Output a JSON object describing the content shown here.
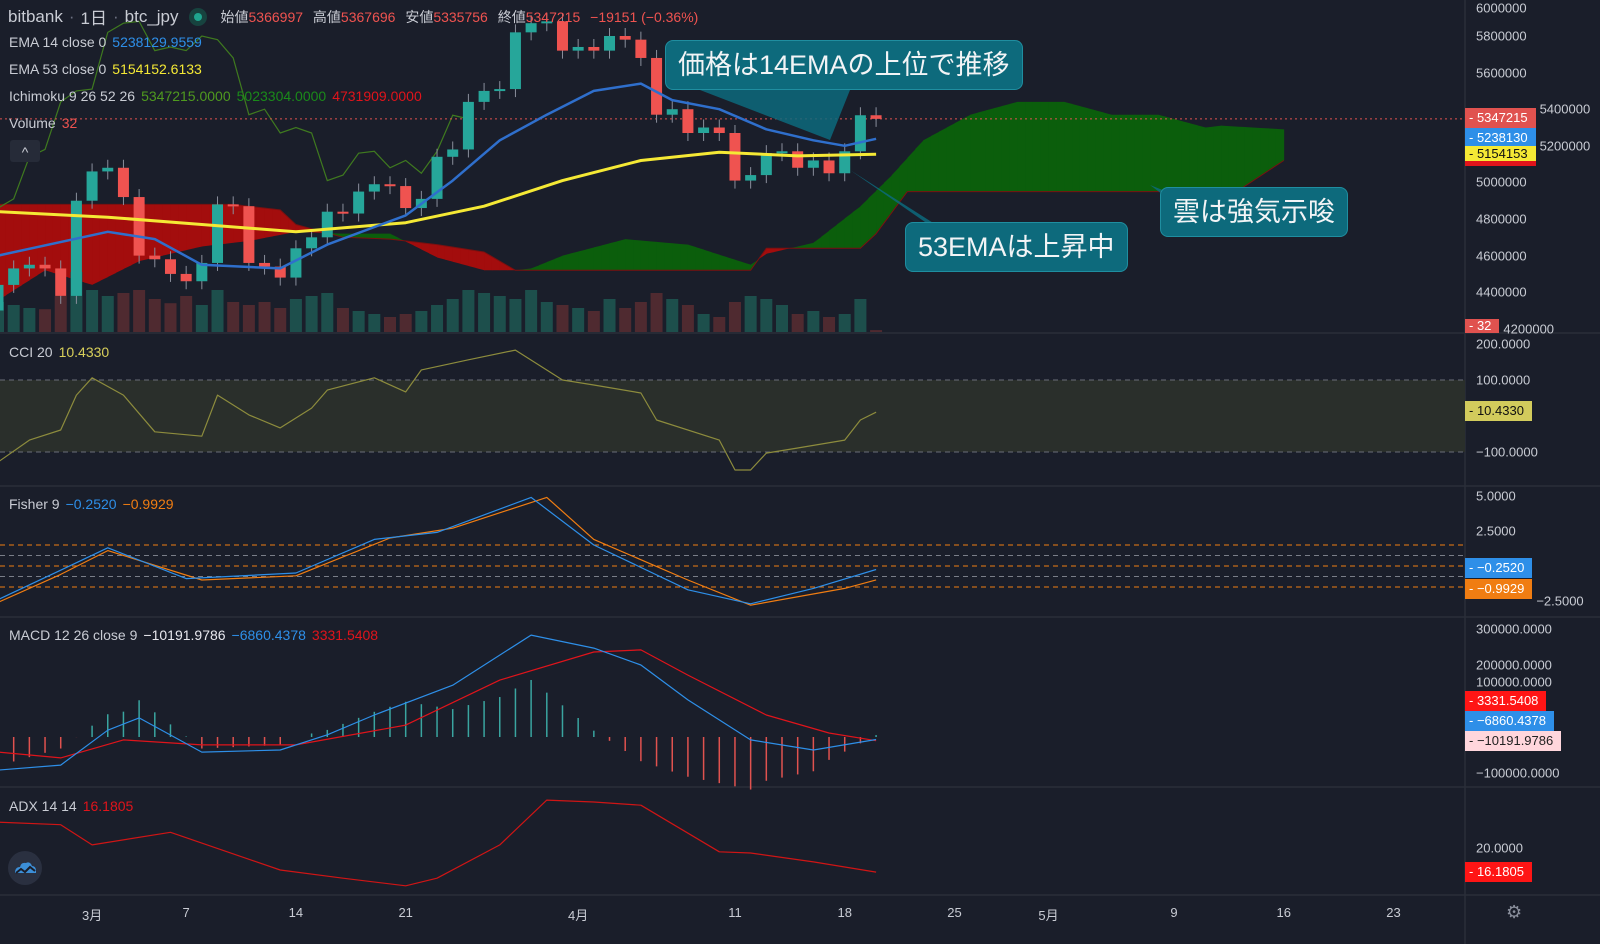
{
  "header": {
    "exchange": "bitbank",
    "interval": "1日",
    "symbol": "btc_jpy",
    "ohlc": {
      "open_label": "始値",
      "open": "5366997",
      "high_label": "高値",
      "high": "5367696",
      "low_label": "安値",
      "low": "5335756",
      "close_label": "終値",
      "close": "5347215",
      "change": "−19151 (−0.36%)"
    },
    "collapse": "^"
  },
  "legends": {
    "ema14": {
      "label": "EMA 14 close 0",
      "value": "5238129.9559"
    },
    "ema53": {
      "label": "EMA 53 close 0",
      "value": "5154152.6133"
    },
    "ichimoku": {
      "label": "Ichimoku 9 26 52 26",
      "v1": "5347215.0000",
      "v2": "5023304.0000",
      "v3": "4731909.0000"
    },
    "volume": {
      "label": "Volume",
      "value": "32"
    },
    "cci": {
      "label": "CCI 20",
      "value": "10.4330"
    },
    "fisher": {
      "label": "Fisher 9",
      "v1": "−0.2520",
      "v2": "−0.9929"
    },
    "macd": {
      "label": "MACD 12 26 close 9",
      "v1": "−10191.9786",
      "v2": "−6860.4378",
      "v3": "3331.5408"
    },
    "adx": {
      "label": "ADX 14 14",
      "value": "16.1805"
    }
  },
  "annotations": [
    {
      "text": "価格は14EMAの上位で推移"
    },
    {
      "text": "雲は強気示唆"
    },
    {
      "text": "53EMAは上昇中"
    }
  ],
  "axes": {
    "price_ticks": [
      "6000000",
      "5800000",
      "5600000",
      "5400000",
      "5200000",
      "5000000",
      "4800000",
      "4600000",
      "4400000",
      "4200000"
    ],
    "cci_ticks": [
      "200.0000",
      "100.0000",
      "−100.0000"
    ],
    "fisher_ticks": [
      "5.0000",
      "2.5000",
      "−2.5000"
    ],
    "macd_ticks": [
      "300000.0000",
      "200000.0000",
      "100000.0000",
      "−100000.0000"
    ],
    "adx_ticks": [
      "20.0000"
    ],
    "time_ticks": [
      {
        "label": "3月",
        "date": "3/1"
      },
      {
        "label": "7",
        "date": "3/7"
      },
      {
        "label": "14",
        "date": "3/14"
      },
      {
        "label": "21",
        "date": "3/21"
      },
      {
        "label": "4月",
        "date": "4/1"
      },
      {
        "label": "11",
        "date": "4/11"
      },
      {
        "label": "18",
        "date": "4/18"
      },
      {
        "label": "25",
        "date": "4/25"
      },
      {
        "label": "5月",
        "date": "5/1"
      },
      {
        "label": "9",
        "date": "5/9"
      },
      {
        "label": "16",
        "date": "5/16"
      },
      {
        "label": "23",
        "date": "5/23"
      }
    ]
  },
  "price_markers": {
    "last": "5347215",
    "ema14": "5238130",
    "ema53": "5154153",
    "volume": "32",
    "cci": "10.4330",
    "fisher1": "−0.2520",
    "fisher2": "−0.9929",
    "macd3": "3331.5408",
    "macd2": "−6860.4378",
    "macd1": "−10191.9786",
    "adx": "16.1805"
  },
  "colors": {
    "up": "#26a69a",
    "down": "#ef5350",
    "ema14": "#2f6fcc",
    "ema53": "#f5e935",
    "cloud_bull": "#0b5e0c",
    "cloud_bear": "#a30d0d",
    "chikou": "#3f7a1f",
    "cci": "#8d8c3d",
    "fisher": "#2e8fe8",
    "fisher_trigger": "#f07d12",
    "macd": "#2e8fe8",
    "signal": "#e0141b",
    "adx": "#d01515",
    "callout": "#0d6a7c"
  },
  "chart_data": {
    "type": "candlestick",
    "dates_start": "2/23",
    "candles": [
      [
        4300000,
        4440000
      ],
      [
        4440000,
        4530000
      ],
      [
        4530000,
        4550000
      ],
      [
        4550000,
        4530000
      ],
      [
        4530000,
        4380000
      ],
      [
        4380000,
        4900000
      ],
      [
        4900000,
        5060000
      ],
      [
        5060000,
        5080000
      ],
      [
        5080000,
        4920000
      ],
      [
        4920000,
        4600000
      ],
      [
        4600000,
        4580000
      ],
      [
        4580000,
        4500000
      ],
      [
        4500000,
        4460000
      ],
      [
        4460000,
        4560000
      ],
      [
        4560000,
        4880000
      ],
      [
        4880000,
        4870000
      ],
      [
        4870000,
        4560000
      ],
      [
        4560000,
        4540000
      ],
      [
        4540000,
        4480000
      ],
      [
        4480000,
        4640000
      ],
      [
        4640000,
        4700000
      ],
      [
        4700000,
        4840000
      ],
      [
        4840000,
        4830000
      ],
      [
        4830000,
        4950000
      ],
      [
        4950000,
        4990000
      ],
      [
        4990000,
        4980000
      ],
      [
        4980000,
        4860000
      ],
      [
        4860000,
        4910000
      ],
      [
        4910000,
        5140000
      ],
      [
        5140000,
        5180000
      ],
      [
        5180000,
        5440000
      ],
      [
        5440000,
        5500000
      ],
      [
        5500000,
        5510000
      ],
      [
        5510000,
        5820000
      ],
      [
        5820000,
        5870000
      ],
      [
        5870000,
        5880000
      ],
      [
        5880000,
        5720000
      ],
      [
        5720000,
        5740000
      ],
      [
        5740000,
        5720000
      ],
      [
        5720000,
        5800000
      ],
      [
        5800000,
        5780000
      ],
      [
        5780000,
        5680000
      ],
      [
        5680000,
        5370000
      ],
      [
        5370000,
        5400000
      ],
      [
        5400000,
        5270000
      ],
      [
        5270000,
        5300000
      ],
      [
        5300000,
        5270000
      ],
      [
        5270000,
        5010000
      ],
      [
        5010000,
        5040000
      ],
      [
        5040000,
        5160000
      ],
      [
        5160000,
        5170000
      ],
      [
        5170000,
        5080000
      ],
      [
        5080000,
        5120000
      ],
      [
        5120000,
        5050000
      ],
      [
        5050000,
        5170000
      ],
      [
        5170000,
        5367000
      ],
      [
        5366997,
        5347215
      ]
    ],
    "volume": [
      500,
      450,
      400,
      380,
      600,
      1000,
      700,
      600,
      650,
      700,
      550,
      480,
      600,
      450,
      700,
      500,
      450,
      500,
      400,
      550,
      600,
      650,
      400,
      350,
      300,
      250,
      300,
      350,
      450,
      550,
      700,
      650,
      600,
      550,
      700,
      500,
      450,
      400,
      350,
      550,
      400,
      500,
      650,
      550,
      450,
      300,
      250,
      500,
      600,
      550,
      450,
      300,
      350,
      250,
      300,
      550,
      32
    ],
    "ema14": [
      [
        "2/23",
        4600000
      ],
      [
        "3/2",
        4730000
      ],
      [
        "3/5",
        4690000
      ],
      [
        "3/8",
        4550000
      ],
      [
        "3/13",
        4530000
      ],
      [
        "3/16",
        4660000
      ],
      [
        "3/21",
        4820000
      ],
      [
        "3/24",
        5010000
      ],
      [
        "3/27",
        5230000
      ],
      [
        "3/30",
        5370000
      ],
      [
        "4/2",
        5500000
      ],
      [
        "4/5",
        5540000
      ],
      [
        "4/7",
        5450000
      ],
      [
        "4/10",
        5400000
      ],
      [
        "4/13",
        5290000
      ],
      [
        "4/16",
        5230000
      ],
      [
        "4/18",
        5200000
      ],
      [
        "4/20",
        5238130
      ]
    ],
    "ema53": [
      [
        "2/23",
        4840000
      ],
      [
        "3/2",
        4810000
      ],
      [
        "3/8",
        4770000
      ],
      [
        "3/14",
        4730000
      ],
      [
        "3/21",
        4780000
      ],
      [
        "3/26",
        4870000
      ],
      [
        "3/31",
        5010000
      ],
      [
        "4/5",
        5120000
      ],
      [
        "4/10",
        5165000
      ],
      [
        "4/15",
        5145000
      ],
      [
        "4/20",
        5154153
      ]
    ],
    "ichimoku_span_a": [
      [
        "2/23",
        4356000
      ],
      [
        "2/26",
        4520000
      ],
      [
        "3/1",
        4440000
      ],
      [
        "3/4",
        4570000
      ],
      [
        "3/8",
        4650000
      ],
      [
        "3/11",
        4680000
      ],
      [
        "3/14",
        4730000
      ],
      [
        "3/17",
        4720000
      ],
      [
        "3/20",
        4720000
      ],
      [
        "3/23",
        4590000
      ],
      [
        "3/26",
        4520000
      ],
      [
        "3/28",
        4520000
      ],
      [
        "3/29",
        4530000
      ],
      [
        "3/31",
        4600000
      ],
      [
        "4/4",
        4690000
      ],
      [
        "4/8",
        4660000
      ],
      [
        "4/12",
        4550000
      ],
      [
        "4/13",
        4610000
      ],
      [
        "4/16",
        4670000
      ],
      [
        "4/19",
        4870000
      ],
      [
        "4/21",
        5040000
      ],
      [
        "4/23",
        5230000
      ],
      [
        "4/26",
        5370000
      ],
      [
        "4/29",
        5440000
      ],
      [
        "5/2",
        5440000
      ],
      [
        "5/5",
        5370000
      ],
      [
        "5/8",
        5370000
      ],
      [
        "5/11",
        5300000
      ],
      [
        "5/12",
        5310000
      ],
      [
        "5/16",
        5290000
      ]
    ],
    "ichimoku_span_b": [
      [
        "2/23",
        4880000
      ],
      [
        "3/10",
        4880000
      ],
      [
        "3/13",
        4850000
      ],
      [
        "3/14",
        4770000
      ],
      [
        "3/17",
        4700000
      ],
      [
        "3/20",
        4690000
      ],
      [
        "3/23",
        4660000
      ],
      [
        "3/26",
        4620000
      ],
      [
        "3/28",
        4520000
      ],
      [
        "4/12",
        4520000
      ],
      [
        "4/13",
        4640000
      ],
      [
        "4/19",
        4640000
      ],
      [
        "4/20",
        4720000
      ],
      [
        "4/22",
        4950000
      ],
      [
        "5/13",
        4950000
      ],
      [
        "5/16",
        5120000
      ]
    ],
    "cci": [
      [
        "2/23",
        -128
      ],
      [
        "2/25",
        -67
      ],
      [
        "2/27",
        -39
      ],
      [
        "2/28",
        58
      ],
      [
        "3/1",
        106
      ],
      [
        "3/3",
        58
      ],
      [
        "3/5",
        -44
      ],
      [
        "3/8",
        -56
      ],
      [
        "3/9",
        58
      ],
      [
        "3/11",
        3
      ],
      [
        "3/13",
        -33
      ],
      [
        "3/15",
        22
      ],
      [
        "3/16",
        72
      ],
      [
        "3/19",
        106
      ],
      [
        "3/21",
        67
      ],
      [
        "3/22",
        128
      ],
      [
        "3/25",
        156
      ],
      [
        "3/28",
        183
      ],
      [
        "3/31",
        100
      ],
      [
        "4/2",
        86
      ],
      [
        "4/5",
        64
      ],
      [
        "4/6",
        -11
      ],
      [
        "4/10",
        -67
      ],
      [
        "4/11",
        -150
      ],
      [
        "4/12",
        -150
      ],
      [
        "4/13",
        -103
      ],
      [
        "4/15",
        -89
      ],
      [
        "4/18",
        -67
      ],
      [
        "4/19",
        -11
      ],
      [
        "4/20",
        10.433
      ]
    ],
    "cci_levels": [
      100,
      -100
    ],
    "fisher": [
      [
        "2/23",
        -2.4
      ],
      [
        "2/27",
        -0.3
      ],
      [
        "3/2",
        1.3
      ],
      [
        "3/7",
        -0.9
      ],
      [
        "3/14",
        -0.5
      ],
      [
        "3/19",
        1.9
      ],
      [
        "3/23",
        2.4
      ],
      [
        "3/29",
        4.9
      ],
      [
        "4/2",
        1.5
      ],
      [
        "4/8",
        -1.7
      ],
      [
        "4/12",
        -2.7
      ],
      [
        "4/16",
        -1.6
      ],
      [
        "4/20",
        -0.252
      ]
    ],
    "fisher_trigger": [
      [
        "2/23",
        -2.6
      ],
      [
        "2/27",
        -0.6
      ],
      [
        "3/2",
        1.1
      ],
      [
        "3/8",
        -1.0
      ],
      [
        "3/14",
        -0.7
      ],
      [
        "3/20",
        2.0
      ],
      [
        "3/24",
        2.7
      ],
      [
        "3/30",
        4.9
      ],
      [
        "4/2",
        1.9
      ],
      [
        "4/8",
        -1.0
      ],
      [
        "4/12",
        -2.8
      ],
      [
        "4/18",
        -1.6
      ],
      [
        "4/20",
        -0.9929
      ]
    ],
    "fisher_levels": [
      1.5,
      0.75,
      0,
      -0.75,
      -1.5
    ],
    "macd": [
      [
        "2/23",
        -92000
      ],
      [
        "2/27",
        -78000
      ],
      [
        "3/2",
        19000
      ],
      [
        "3/4",
        53000
      ],
      [
        "3/8",
        -42000
      ],
      [
        "3/13",
        -36000
      ],
      [
        "3/16",
        6000
      ],
      [
        "3/19",
        61000
      ],
      [
        "3/24",
        144000
      ],
      [
        "3/29",
        283000
      ],
      [
        "4/2",
        247000
      ],
      [
        "4/5",
        200000
      ],
      [
        "4/8",
        103000
      ],
      [
        "4/12",
        -8000
      ],
      [
        "4/16",
        -36000
      ],
      [
        "4/20",
        -6860.4378
      ]
    ],
    "macd_signal": [
      [
        "2/23",
        -42000
      ],
      [
        "2/27",
        -58000
      ],
      [
        "3/3",
        -8000
      ],
      [
        "3/8",
        -22000
      ],
      [
        "3/14",
        -22000
      ],
      [
        "3/21",
        33000
      ],
      [
        "3/27",
        158000
      ],
      [
        "4/2",
        236000
      ],
      [
        "4/5",
        242000
      ],
      [
        "4/8",
        172000
      ],
      [
        "4/13",
        61000
      ],
      [
        "4/17",
        11000
      ],
      [
        "4/20",
        -10191.9786
      ]
    ],
    "adx": [
      [
        "2/23",
        24.1
      ],
      [
        "2/27",
        23.7
      ],
      [
        "3/1",
        20.5
      ],
      [
        "3/6",
        22.5
      ],
      [
        "3/13",
        16.5
      ],
      [
        "3/17",
        15.2
      ],
      [
        "3/21",
        14.0
      ],
      [
        "3/23",
        15.2
      ],
      [
        "3/27",
        20.5
      ],
      [
        "3/30",
        27.6
      ],
      [
        "4/2",
        27.3
      ],
      [
        "4/5",
        26.8
      ],
      [
        "4/10",
        19.4
      ],
      [
        "4/12",
        19.2
      ],
      [
        "4/16",
        17.8
      ],
      [
        "4/20",
        16.1805
      ]
    ]
  }
}
